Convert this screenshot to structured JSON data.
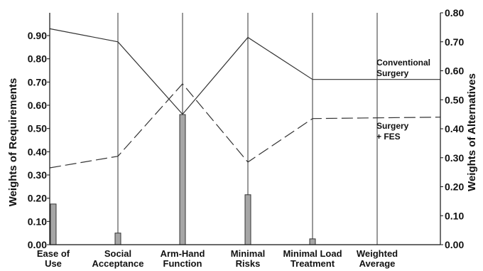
{
  "chart_data": {
    "type": "bar+line",
    "categories": [
      "Ease of\nUse",
      "Social\nAcceptance",
      "Arm-Hand\nFunction",
      "Minimal\nRisks",
      "Minimal Load\nTreatment",
      "Weighted\nAverage"
    ],
    "left_axis": {
      "label": "Weights of Requirements",
      "ticks": [
        "0.00",
        "0.10",
        "0.20",
        "0.30",
        "0.40",
        "0.50",
        "0.60",
        "0.70",
        "0.80",
        "0.90"
      ],
      "range": [
        0,
        1.0
      ]
    },
    "right_axis": {
      "label": "Weights of Alternatives",
      "ticks": [
        "0.00",
        "0.10",
        "0.20",
        "0.30",
        "0.40",
        "0.50",
        "0.60",
        "0.70",
        "0.80"
      ],
      "range": [
        0,
        0.8
      ]
    },
    "bars": {
      "axis": "left",
      "values": [
        0.175,
        0.05,
        0.56,
        0.215,
        0.025,
        null
      ]
    },
    "series": [
      {
        "name": "Conventional\nSurgery",
        "style": "solid",
        "axis": "right",
        "values": [
          0.745,
          0.7,
          0.45,
          0.715,
          0.57,
          0.57
        ]
      },
      {
        "name": "Surgery\n+ FES",
        "style": "dashed",
        "axis": "right",
        "values": [
          0.265,
          0.305,
          0.555,
          0.285,
          0.435,
          0.44
        ]
      }
    ],
    "colors": {
      "bar_fill": "#a6a6a6",
      "bar_stroke": "#333333",
      "line": "#333333",
      "axis": "#111111"
    }
  }
}
